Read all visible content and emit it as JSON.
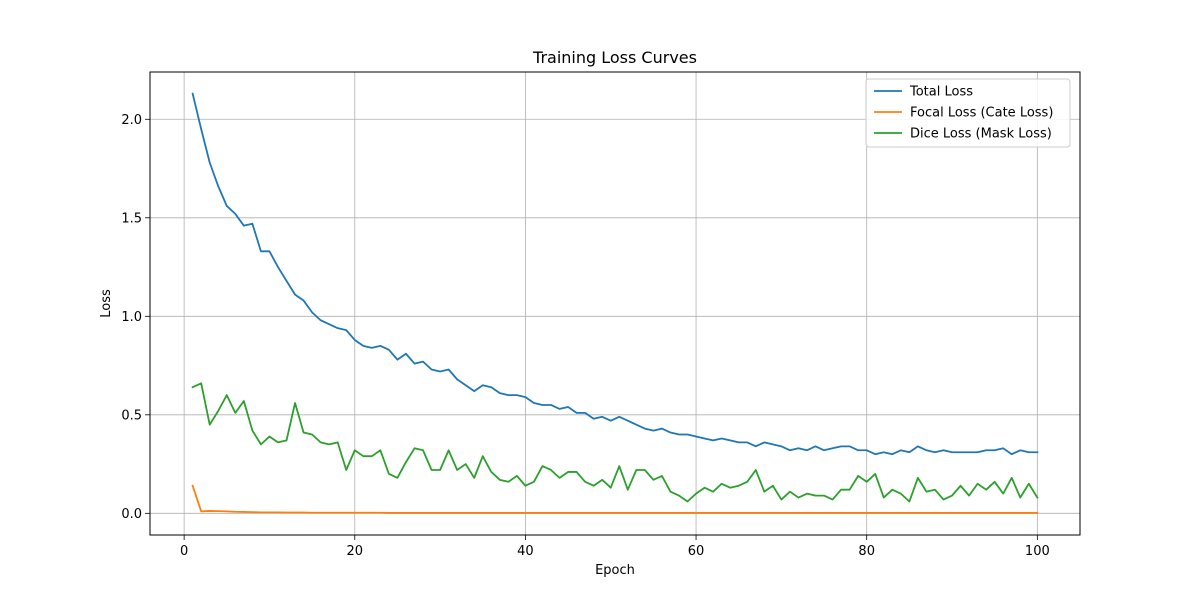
{
  "chart_data": {
    "type": "line",
    "title": "Training Loss Curves",
    "xlabel": "Epoch",
    "ylabel": "Loss",
    "xlim": [
      -4,
      105
    ],
    "ylim": [
      -0.11,
      2.24
    ],
    "xticks": [
      0,
      20,
      40,
      60,
      80,
      100
    ],
    "yticks": [
      0.0,
      0.5,
      1.0,
      1.5,
      2.0
    ],
    "xtick_labels": [
      "0",
      "20",
      "40",
      "60",
      "80",
      "100"
    ],
    "ytick_labels": [
      "0.0",
      "0.5",
      "1.0",
      "1.5",
      "2.0"
    ],
    "grid": true,
    "legend_position": "top-right",
    "x": [
      1,
      2,
      3,
      4,
      5,
      6,
      7,
      8,
      9,
      10,
      11,
      12,
      13,
      14,
      15,
      16,
      17,
      18,
      19,
      20,
      21,
      22,
      23,
      24,
      25,
      26,
      27,
      28,
      29,
      30,
      31,
      32,
      33,
      34,
      35,
      36,
      37,
      38,
      39,
      40,
      41,
      42,
      43,
      44,
      45,
      46,
      47,
      48,
      49,
      50,
      51,
      52,
      53,
      54,
      55,
      56,
      57,
      58,
      59,
      60,
      61,
      62,
      63,
      64,
      65,
      66,
      67,
      68,
      69,
      70,
      71,
      72,
      73,
      74,
      75,
      76,
      77,
      78,
      79,
      80,
      81,
      82,
      83,
      84,
      85,
      86,
      87,
      88,
      89,
      90,
      91,
      92,
      93,
      94,
      95,
      96,
      97,
      98,
      99,
      100
    ],
    "series": [
      {
        "name": "Total Loss",
        "color": "#1f77b4",
        "values": [
          2.13,
          1.95,
          1.78,
          1.66,
          1.56,
          1.52,
          1.46,
          1.47,
          1.33,
          1.33,
          1.25,
          1.18,
          1.11,
          1.08,
          1.02,
          0.98,
          0.96,
          0.94,
          0.93,
          0.88,
          0.85,
          0.84,
          0.85,
          0.83,
          0.78,
          0.81,
          0.76,
          0.77,
          0.73,
          0.72,
          0.73,
          0.68,
          0.65,
          0.62,
          0.65,
          0.64,
          0.61,
          0.6,
          0.6,
          0.59,
          0.56,
          0.55,
          0.55,
          0.53,
          0.54,
          0.51,
          0.51,
          0.48,
          0.49,
          0.47,
          0.49,
          0.47,
          0.45,
          0.43,
          0.42,
          0.43,
          0.41,
          0.4,
          0.4,
          0.39,
          0.38,
          0.37,
          0.38,
          0.37,
          0.36,
          0.36,
          0.34,
          0.36,
          0.35,
          0.34,
          0.32,
          0.33,
          0.32,
          0.34,
          0.32,
          0.33,
          0.34,
          0.34,
          0.32,
          0.32,
          0.3,
          0.31,
          0.3,
          0.32,
          0.31,
          0.34,
          0.32,
          0.31,
          0.32,
          0.31,
          0.31,
          0.31,
          0.31,
          0.32,
          0.32,
          0.33,
          0.3,
          0.32,
          0.31,
          0.31
        ]
      },
      {
        "name": "Focal Loss (Cate Loss)",
        "color": "#ff7f0e",
        "values": [
          0.14,
          0.01,
          0.012,
          0.011,
          0.01,
          0.008,
          0.007,
          0.006,
          0.005,
          0.005,
          0.005,
          0.004,
          0.004,
          0.004,
          0.003,
          0.003,
          0.003,
          0.003,
          0.003,
          0.003,
          0.003,
          0.003,
          0.003,
          0.002,
          0.002,
          0.002,
          0.002,
          0.002,
          0.002,
          0.002,
          0.002,
          0.002,
          0.002,
          0.002,
          0.002,
          0.002,
          0.002,
          0.002,
          0.002,
          0.002,
          0.002,
          0.002,
          0.002,
          0.002,
          0.002,
          0.002,
          0.002,
          0.002,
          0.002,
          0.002,
          0.002,
          0.002,
          0.002,
          0.002,
          0.002,
          0.002,
          0.002,
          0.002,
          0.002,
          0.002,
          0.002,
          0.002,
          0.002,
          0.002,
          0.002,
          0.002,
          0.002,
          0.002,
          0.002,
          0.002,
          0.002,
          0.002,
          0.002,
          0.002,
          0.002,
          0.002,
          0.002,
          0.002,
          0.002,
          0.002,
          0.002,
          0.002,
          0.002,
          0.002,
          0.002,
          0.002,
          0.002,
          0.002,
          0.002,
          0.002,
          0.002,
          0.002,
          0.002,
          0.002,
          0.002,
          0.002,
          0.002,
          0.002,
          0.002,
          0.002
        ]
      },
      {
        "name": "Dice Loss (Mask Loss)",
        "color": "#2ca02c",
        "values": [
          0.64,
          0.66,
          0.45,
          0.52,
          0.6,
          0.51,
          0.57,
          0.42,
          0.35,
          0.39,
          0.36,
          0.37,
          0.56,
          0.41,
          0.4,
          0.36,
          0.35,
          0.36,
          0.22,
          0.32,
          0.29,
          0.29,
          0.32,
          0.2,
          0.18,
          0.26,
          0.33,
          0.32,
          0.22,
          0.22,
          0.32,
          0.22,
          0.25,
          0.18,
          0.29,
          0.21,
          0.17,
          0.16,
          0.19,
          0.14,
          0.16,
          0.24,
          0.22,
          0.18,
          0.21,
          0.21,
          0.16,
          0.14,
          0.17,
          0.13,
          0.24,
          0.12,
          0.22,
          0.22,
          0.17,
          0.19,
          0.11,
          0.09,
          0.06,
          0.1,
          0.13,
          0.11,
          0.15,
          0.13,
          0.14,
          0.16,
          0.22,
          0.11,
          0.14,
          0.07,
          0.11,
          0.08,
          0.1,
          0.09,
          0.09,
          0.07,
          0.12,
          0.12,
          0.19,
          0.16,
          0.2,
          0.08,
          0.12,
          0.1,
          0.06,
          0.18,
          0.11,
          0.12,
          0.07,
          0.09,
          0.14,
          0.09,
          0.15,
          0.12,
          0.16,
          0.1,
          0.18,
          0.08,
          0.15,
          0.08
        ]
      }
    ]
  }
}
